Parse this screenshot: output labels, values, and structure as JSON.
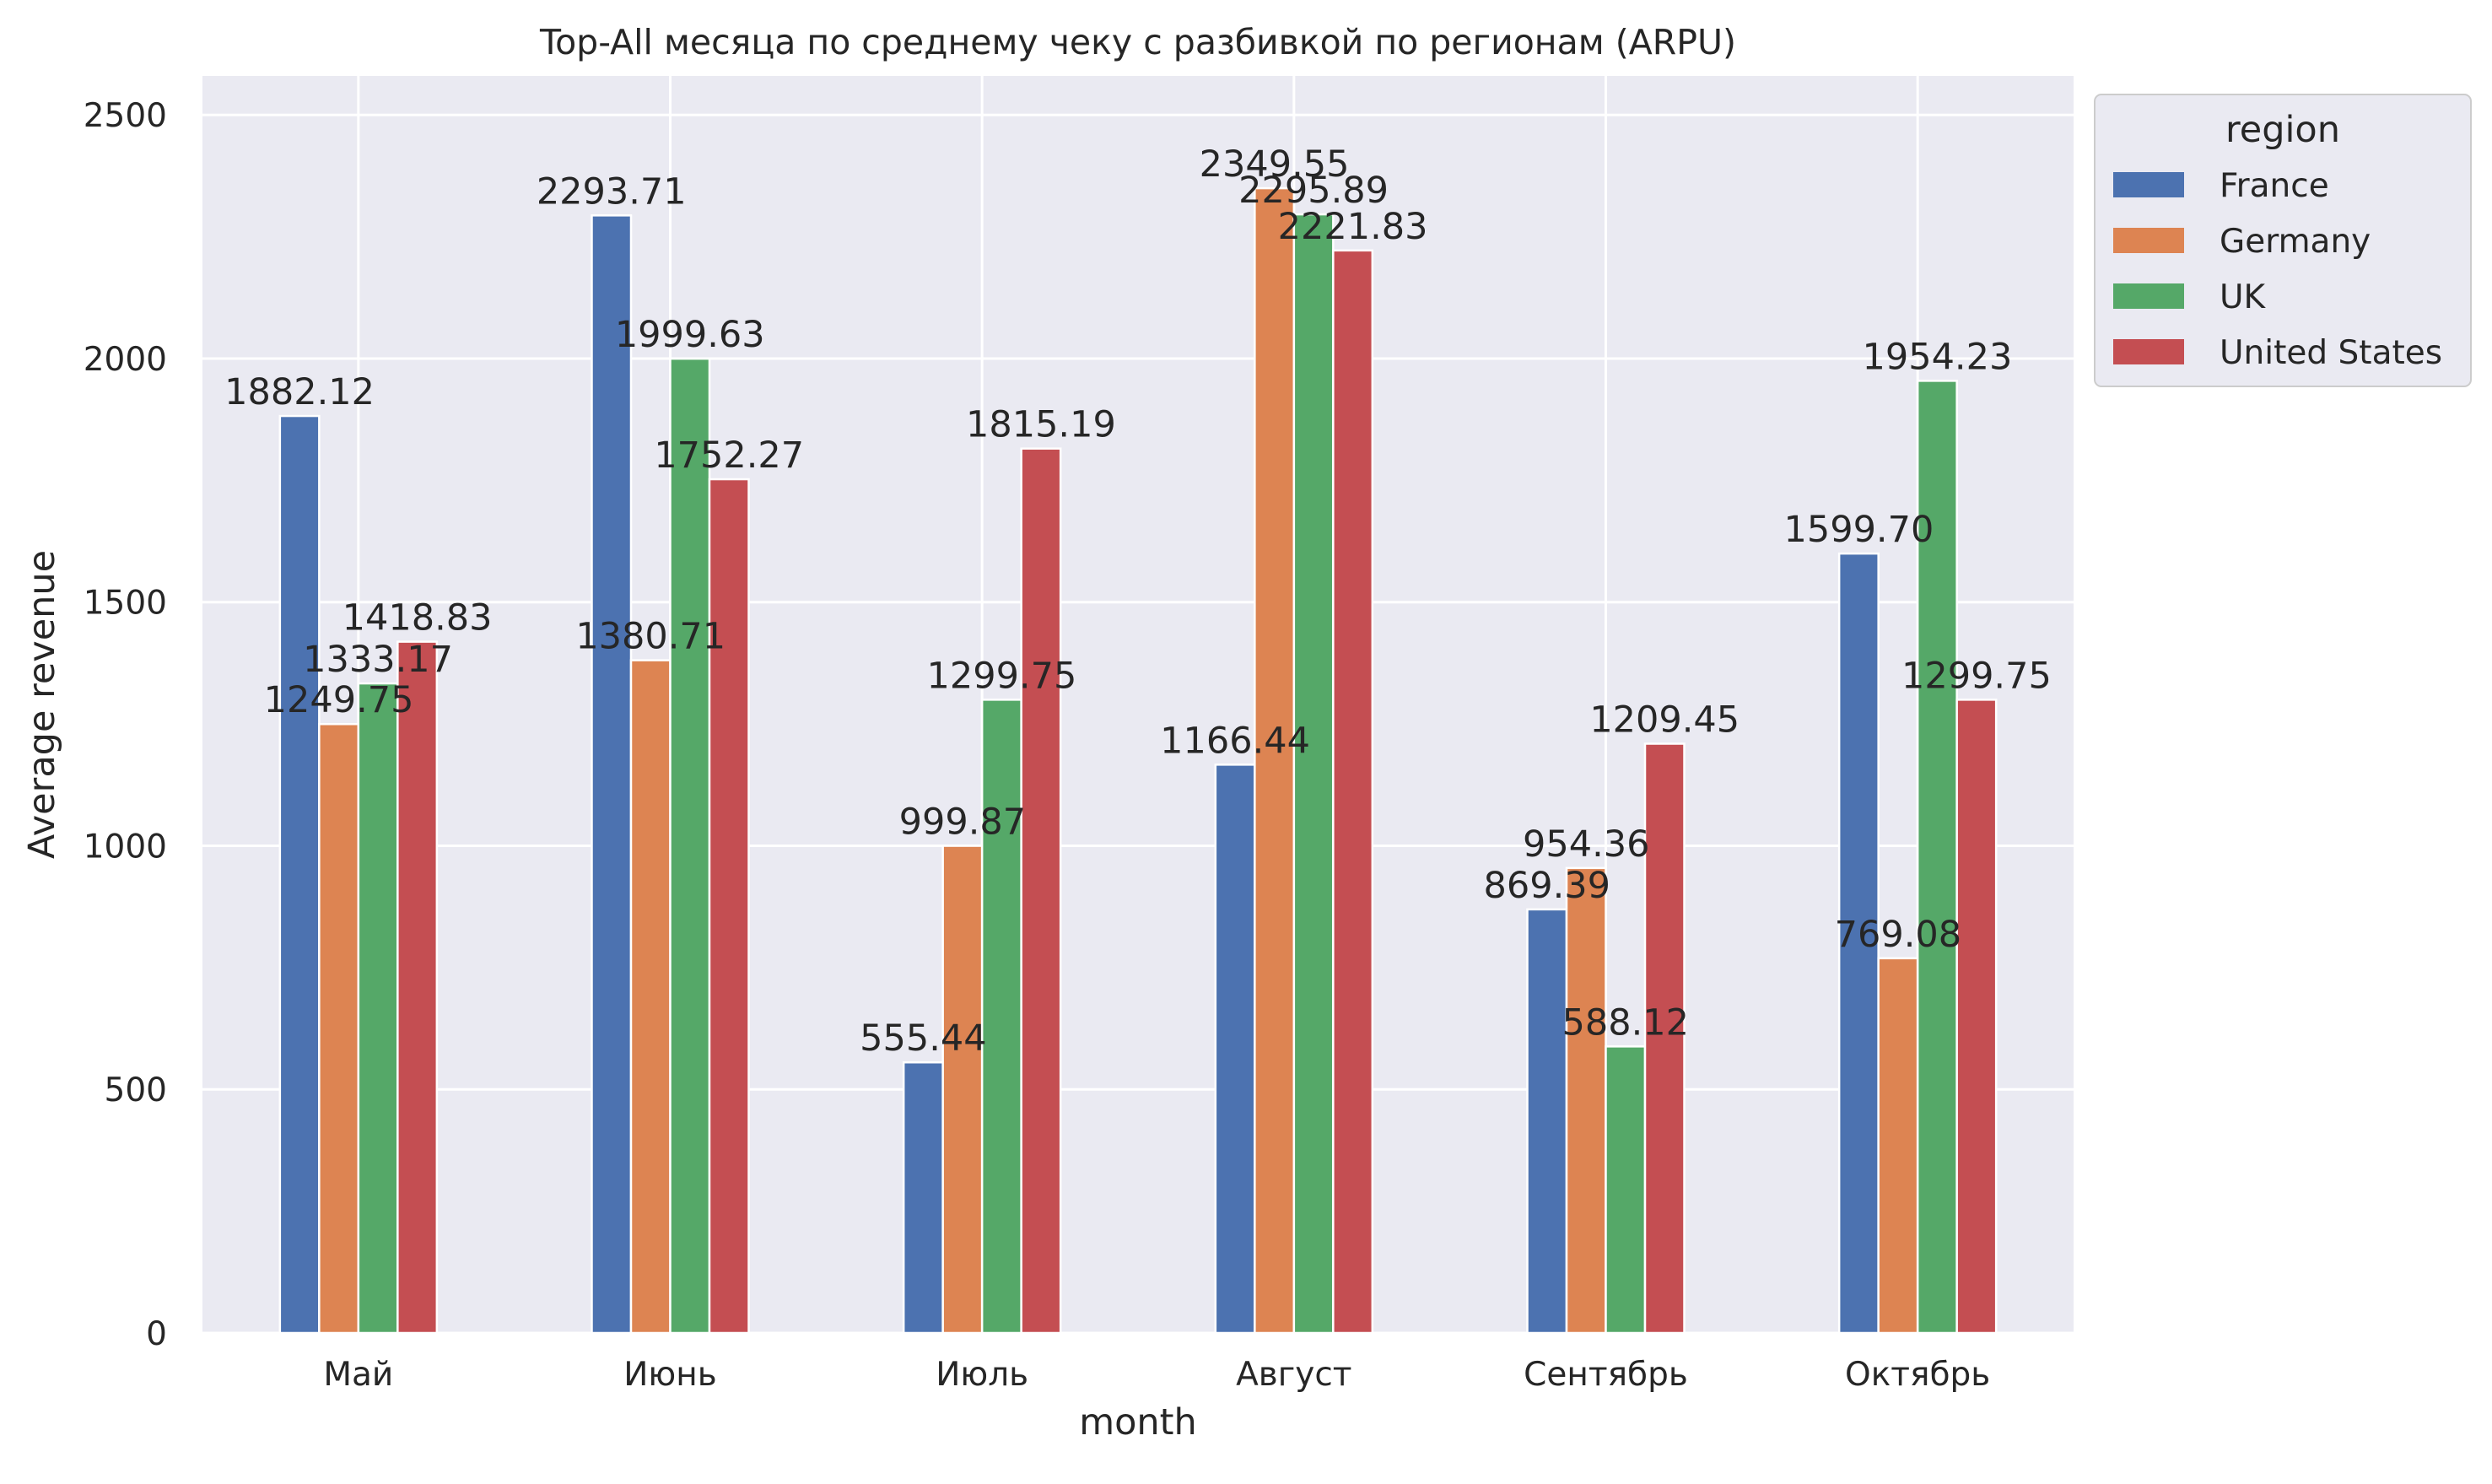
{
  "chart_data": {
    "type": "bar",
    "title": "Top-All месяца по среднему чеку с разбивкой по регионам (ARPU)",
    "xlabel": "month",
    "ylabel": "Average revenue",
    "categories": [
      "Май",
      "Июнь",
      "Июль",
      "Август",
      "Сентябрь",
      "Октябрь"
    ],
    "ylim": [
      0,
      2580
    ],
    "yticks": [
      0,
      500,
      1000,
      1500,
      2000,
      2500
    ],
    "grid": true,
    "legend": {
      "title": "region",
      "placement": "outside-top-right"
    },
    "series": [
      {
        "name": "France",
        "color": "#4c72b0",
        "values": [
          1882.12,
          2293.71,
          555.44,
          1166.44,
          869.39,
          1599.7
        ],
        "labels": [
          "1882.12",
          "2293.71",
          "555.44",
          "1166.44",
          "869.39",
          "1599.70"
        ]
      },
      {
        "name": "Germany",
        "color": "#dd8452",
        "values": [
          1249.75,
          1380.71,
          999.87,
          2349.55,
          954.36,
          769.08
        ],
        "labels": [
          "1249.75",
          "1380.71",
          "999.87",
          "2349.55",
          "954.36",
          "769.08"
        ]
      },
      {
        "name": "UK",
        "color": "#55a868",
        "values": [
          1333.17,
          1999.63,
          1299.75,
          2295.89,
          588.12,
          1954.23
        ],
        "labels": [
          "1333.17",
          "1999.63",
          "1299.75",
          "2295.89",
          "588.12",
          "1954.23"
        ]
      },
      {
        "name": "United States",
        "color": "#c44e52",
        "values": [
          1418.83,
          1752.27,
          1815.19,
          2221.83,
          1209.45,
          1299.75
        ],
        "labels": [
          "1418.83",
          "1752.27",
          "1815.19",
          "2221.83",
          "1209.45",
          "1299.75"
        ]
      }
    ],
    "plot_background": "#eaeaf2",
    "grid_color": "#ffffff"
  }
}
